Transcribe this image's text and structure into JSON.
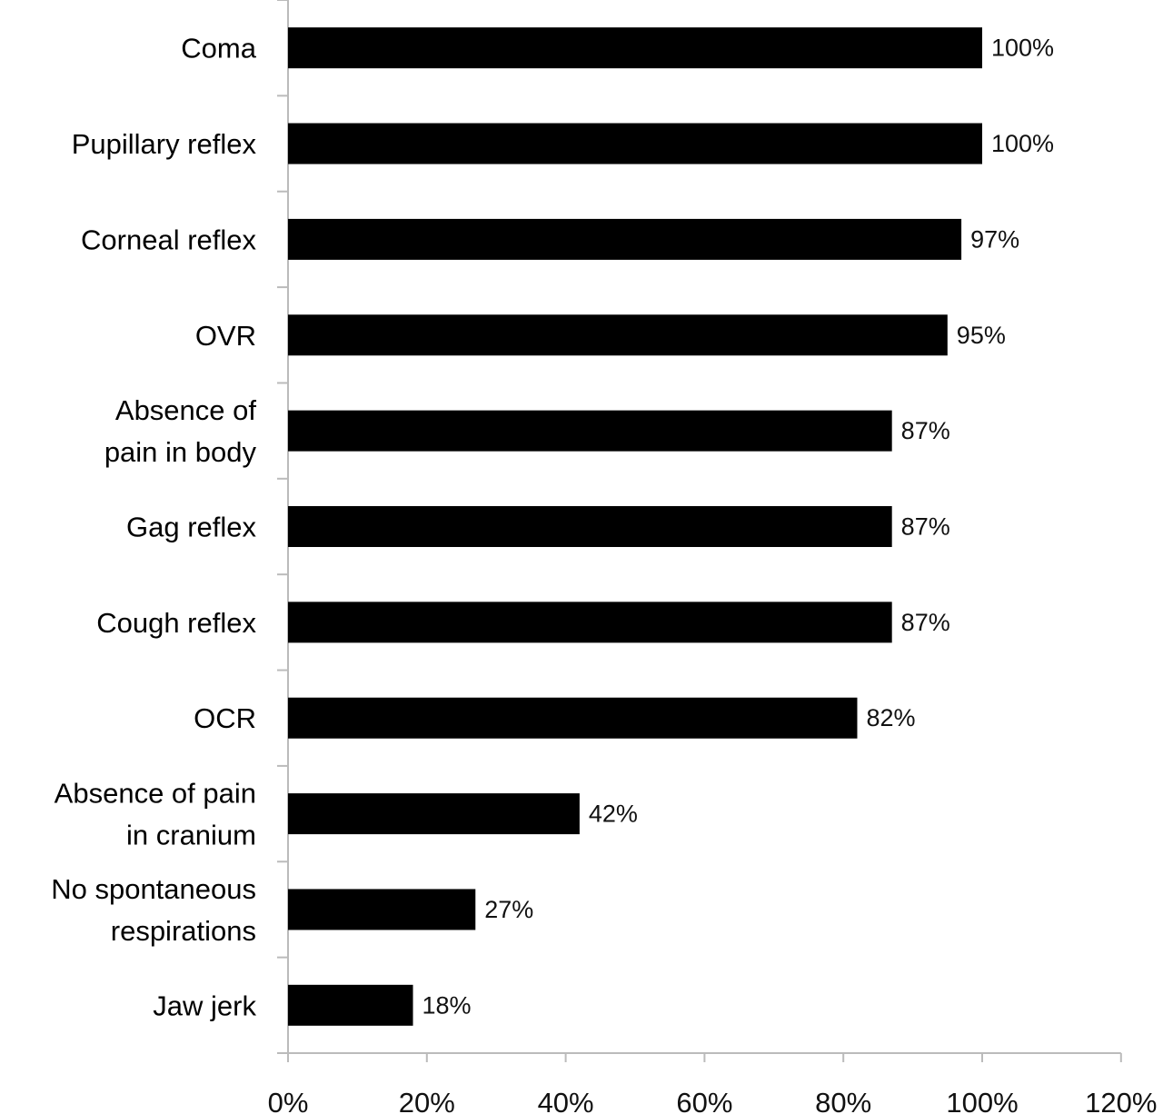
{
  "chart_data": {
    "type": "bar",
    "orientation": "horizontal",
    "title": "",
    "xlabel": "",
    "ylabel": "",
    "categories": [
      "Coma",
      "Pupillary reflex",
      "Corneal reflex",
      "OVR",
      "Absence of pain in body",
      "Gag reflex",
      "Cough reflex",
      "OCR",
      "Absence of pain in cranium",
      "No spontaneous respirations",
      "Jaw jerk"
    ],
    "category_lines": [
      [
        "Coma"
      ],
      [
        "Pupillary reflex"
      ],
      [
        "Corneal reflex"
      ],
      [
        "OVR"
      ],
      [
        "Absence of",
        "pain in body"
      ],
      [
        "Gag reflex"
      ],
      [
        "Cough reflex"
      ],
      [
        "OCR"
      ],
      [
        "Absence of pain",
        "in cranium"
      ],
      [
        "No spontaneous",
        "respirations"
      ],
      [
        "Jaw jerk"
      ]
    ],
    "values": [
      100,
      100,
      97,
      95,
      87,
      87,
      87,
      82,
      42,
      27,
      18
    ],
    "value_labels": [
      "100%",
      "100%",
      "97%",
      "95%",
      "87%",
      "87%",
      "87%",
      "82%",
      "42%",
      "27%",
      "18%"
    ],
    "xlim": [
      0,
      120
    ],
    "xticks": [
      0,
      20,
      40,
      60,
      80,
      100,
      120
    ],
    "xtick_labels": [
      "0%",
      "20%",
      "40%",
      "60%",
      "80%",
      "100%",
      "120%"
    ],
    "grid": false,
    "legend": "none",
    "bar_color": "#000000"
  }
}
